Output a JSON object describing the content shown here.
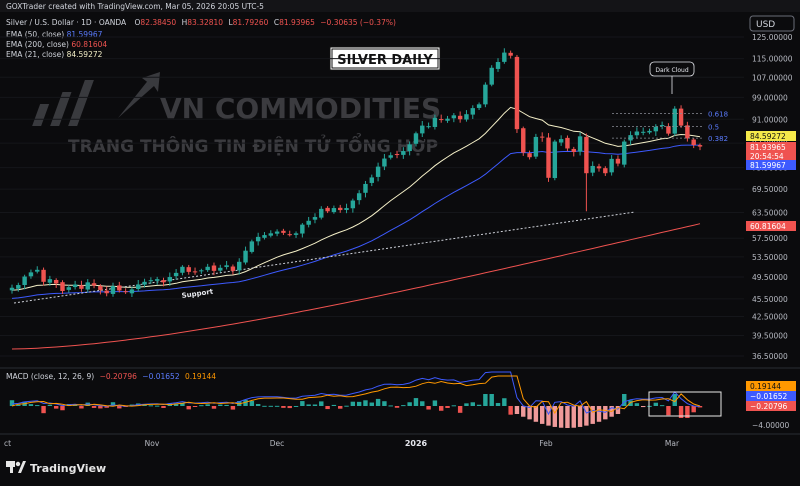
{
  "header": {
    "creator": "GOXTrader created with TradingView.com, Mar 05, 2026 20:05 UTC-5",
    "currency_button": "USD",
    "symbol": "Silver / U.S. Dollar · 1D · OANDA",
    "ohlc": {
      "o_label": "O",
      "o": "82.38450",
      "h_label": "H",
      "h": "83.32810",
      "l_label": "L",
      "l": "81.79260",
      "c_label": "C",
      "c": "81.93965",
      "change": "−0.30635 (−0.37%)"
    },
    "ema_legend": [
      {
        "label": "EMA (50, close)",
        "value": "81.59967",
        "color": "#3d5afe"
      },
      {
        "label": "EMA (200, close)",
        "value": "60.81604",
        "color": "#ef5350"
      },
      {
        "label": "EMA (21, close)",
        "value": "84.59272",
        "color": "#f5f0c8"
      }
    ],
    "macd_legend": {
      "label": "MACD (close, 12, 26, 9)",
      "v1": "−0.20796",
      "v1_color": "#ef5350",
      "v2": "−0.01652",
      "v2_color": "#3d5afe",
      "v3": "0.19144",
      "v3_color": "#ff9800"
    }
  },
  "overlay": {
    "title_box": "SILVER DAILY",
    "watermark_main": "VN COMMODITIES",
    "watermark_sub": "TRANG THÔNG TIN ĐIỆN TỬ TỔNG HỢP",
    "support_label": "Support",
    "dark_cloud_label": "Dark Cloud",
    "fib_levels": [
      {
        "label": "0.618",
        "price": 93.0
      },
      {
        "label": "0.5",
        "price": 88.5
      },
      {
        "label": "0.382",
        "price": 84.6
      }
    ]
  },
  "chart_data": {
    "type": "candlestick",
    "title": "SILVER DAILY",
    "x_axis_labels": [
      "ct",
      "Nov",
      "Dec",
      "2026",
      "Feb",
      "Mar"
    ],
    "price_scale": {
      "type": "log",
      "range": [
        35.0,
        128.0
      ],
      "ticks": [
        "125.00000",
        "115.00000",
        "107.00000",
        "99.00000",
        "91.00000",
        "83.00000",
        "75.50000",
        "69.50000",
        "63.50000",
        "57.50000",
        "53.50000",
        "49.50000",
        "45.50000",
        "42.50000",
        "39.50000",
        "36.50000"
      ]
    },
    "price_tags": [
      {
        "text": "84.59272",
        "bg": "#f5e94a",
        "fg": "#111111"
      },
      {
        "text": "81.93965",
        "bg": "#ef5350",
        "fg": "#ffffff"
      },
      {
        "text": "20:54:54",
        "bg": "#ef5350",
        "fg": "#ffffff"
      },
      {
        "text": "81.59967",
        "bg": "#3d5afe",
        "fg": "#ffffff"
      },
      {
        "text": "60.81604",
        "bg": "#ef5350",
        "fg": "#ffffff"
      }
    ],
    "macd_scale_ticks": [
      "−4.00000"
    ],
    "macd_tags": [
      {
        "text": "0.19144",
        "bg": "#ff9800",
        "fg": "#111111"
      },
      {
        "text": "−0.01652",
        "bg": "#3d5afe",
        "fg": "#ffffff"
      },
      {
        "text": "−0.20796",
        "bg": "#ef5350",
        "fg": "#ffffff"
      }
    ],
    "series_close": [
      47.5,
      48.0,
      49.6,
      50.4,
      50.9,
      48.6,
      49.1,
      48.3,
      46.9,
      47.6,
      48.1,
      47.3,
      48.5,
      47.9,
      47.1,
      46.5,
      47.8,
      47.0,
      46.7,
      47.2,
      48.1,
      48.6,
      48.9,
      49.1,
      48.5,
      49.5,
      50.3,
      51.5,
      50.5,
      50.4,
      50.8,
      51.5,
      50.7,
      51.3,
      51.8,
      50.7,
      52.5,
      54.8,
      56.8,
      57.8,
      58.2,
      58.6,
      59.0,
      58.7,
      58.3,
      58.6,
      60.6,
      61.5,
      62.4,
      64.4,
      63.8,
      64.6,
      64.1,
      64.6,
      66.5,
      68.4,
      70.9,
      72.7,
      75.8,
      78.2,
      79.2,
      79.4,
      80.5,
      82.6,
      86.2,
      88.8,
      88.6,
      91.5,
      90.9,
      91.2,
      92.4,
      91.0,
      92.8,
      95.0,
      96.4,
      104.0,
      111.0,
      113.5,
      117.7,
      116.3,
      87.6,
      80.0,
      78.6,
      85.0,
      84.9,
      72.6,
      83.5,
      84.3,
      81.3,
      80.2,
      85.2,
      73.9,
      76.0,
      75.3,
      73.9,
      78.1,
      76.7,
      83.5,
      85.6,
      86.8,
      86.7,
      87.0,
      88.4,
      89.0,
      86.1,
      94.8,
      88.8,
      84.5,
      82.4,
      81.9
    ],
    "ema21_end": 84.59272,
    "ema50_end": 81.59967,
    "ema200_end": 60.81604
  }
}
